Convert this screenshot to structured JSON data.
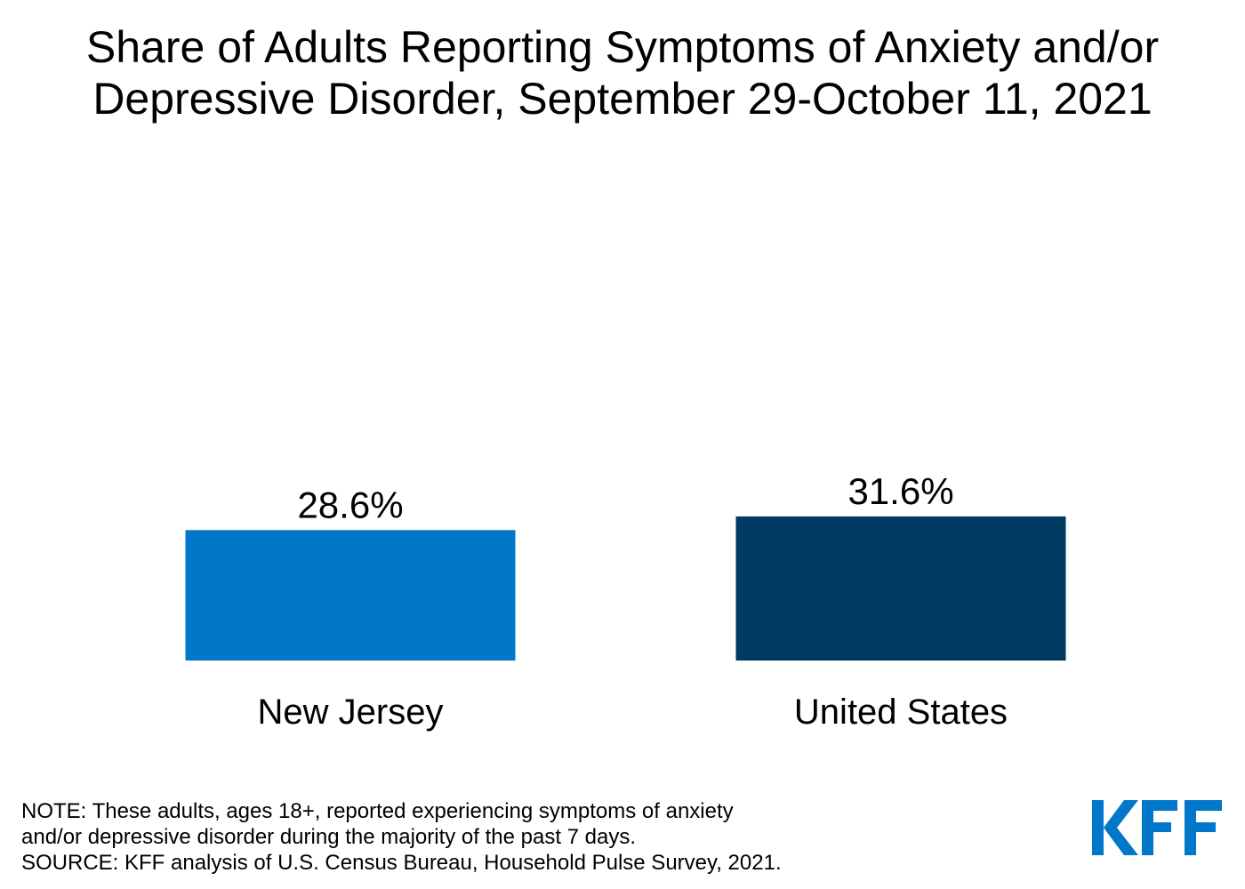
{
  "title": {
    "line1": "Share of Adults Reporting Symptoms of Anxiety and/or",
    "line2": "Depressive Disorder, September 29-October 11, 2021"
  },
  "chart_data": {
    "type": "bar",
    "title": "Share of Adults Reporting Symptoms of Anxiety and/or Depressive Disorder, September 29-October 11, 2021",
    "categories": [
      "New Jersey",
      "United States"
    ],
    "values": [
      28.6,
      31.6
    ],
    "value_labels": [
      "28.6%",
      "31.6%"
    ],
    "colors": [
      "#0077c8",
      "#003a63"
    ],
    "ylim": [
      0,
      100
    ],
    "xlabel": "",
    "ylabel": "",
    "grid": false,
    "legend": "none"
  },
  "footnote": {
    "note_line1": "NOTE: These adults, ages 18+, reported experiencing symptoms of anxiety",
    "note_line2": "and/or depressive disorder during the majority of the past 7 days.",
    "source": "SOURCE: KFF analysis of U.S. Census Bureau, Household Pulse Survey, 2021."
  },
  "logo": {
    "text": "KFF",
    "color": "#0077c8"
  }
}
